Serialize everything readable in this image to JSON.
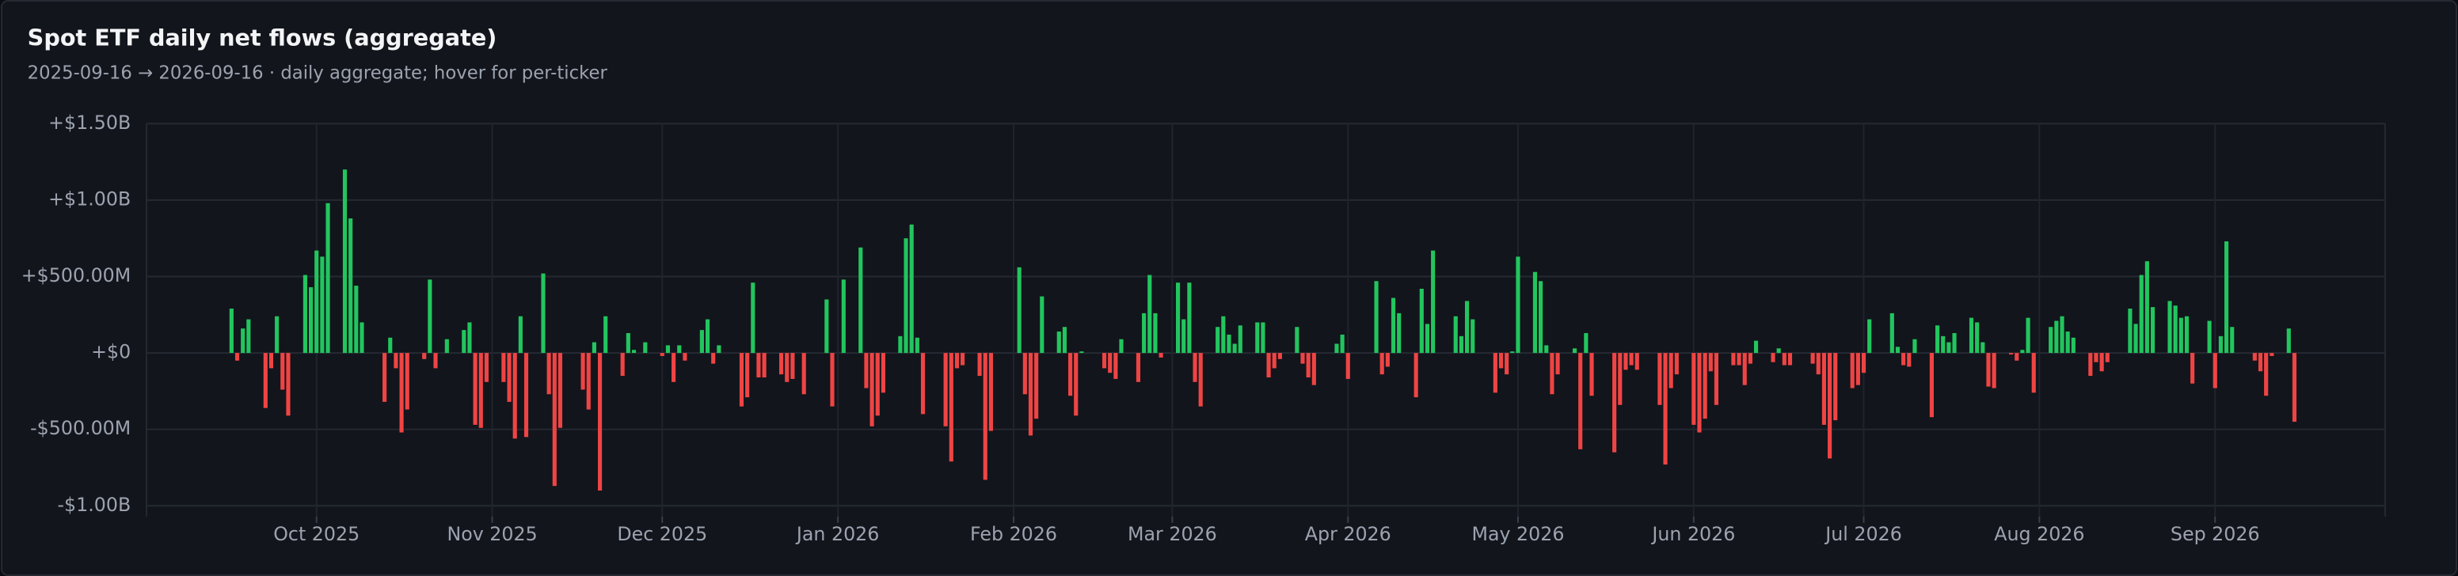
{
  "chart_data": {
    "type": "bar",
    "title": "Spot ETF daily net flows (aggregate)",
    "subtitle": "2025-09-16 → 2026-09-16 · daily aggregate; hover for per-ticker",
    "positive_color": "#22c55e",
    "negative_color": "#ef4444",
    "grid": true,
    "ylim": [
      -1070,
      1500
    ],
    "yticks": [
      {
        "value": -1000,
        "label": "-$1.00B"
      },
      {
        "value": -500,
        "label": "-$500.00M"
      },
      {
        "value": 0,
        "label": "+$0"
      },
      {
        "value": 500,
        "label": "+$500.00M"
      },
      {
        "value": 1000,
        "label": "+$1.00B"
      },
      {
        "value": 1500,
        "label": "+$1.50B"
      }
    ],
    "xlim": [
      "2025-09-01",
      "2026-10-01"
    ],
    "xticks": [
      {
        "value": "2025-10-01",
        "label": "Oct 2025"
      },
      {
        "value": "2025-11-01",
        "label": "Nov 2025"
      },
      {
        "value": "2025-12-01",
        "label": "Dec 2025"
      },
      {
        "value": "2026-01-01",
        "label": "Jan 2026"
      },
      {
        "value": "2026-02-01",
        "label": "Feb 2026"
      },
      {
        "value": "2026-03-01",
        "label": "Mar 2026"
      },
      {
        "value": "2026-04-01",
        "label": "Apr 2026"
      },
      {
        "value": "2026-05-01",
        "label": "May 2026"
      },
      {
        "value": "2026-06-01",
        "label": "Jun 2026"
      },
      {
        "value": "2026-07-01",
        "label": "Jul 2026"
      },
      {
        "value": "2026-08-01",
        "label": "Aug 2026"
      },
      {
        "value": "2026-09-01",
        "label": "Sep 2026"
      }
    ],
    "x": [
      "2025-09-16",
      "2025-09-17",
      "2025-09-18",
      "2025-09-19",
      "2025-09-22",
      "2025-09-23",
      "2025-09-24",
      "2025-09-25",
      "2025-09-26",
      "2025-09-29",
      "2025-09-30",
      "2025-10-01",
      "2025-10-02",
      "2025-10-03",
      "2025-10-06",
      "2025-10-07",
      "2025-10-08",
      "2025-10-09",
      "2025-10-13",
      "2025-10-14",
      "2025-10-15",
      "2025-10-16",
      "2025-10-17",
      "2025-10-20",
      "2025-10-21",
      "2025-10-22",
      "2025-10-24",
      "2025-10-27",
      "2025-10-28",
      "2025-10-29",
      "2025-10-30",
      "2025-10-31",
      "2025-11-03",
      "2025-11-04",
      "2025-11-05",
      "2025-11-06",
      "2025-11-07",
      "2025-11-10",
      "2025-11-11",
      "2025-11-12",
      "2025-11-13",
      "2025-11-17",
      "2025-11-18",
      "2025-11-19",
      "2025-11-20",
      "2025-11-21",
      "2025-11-24",
      "2025-11-25",
      "2025-11-26",
      "2025-11-28",
      "2025-12-01",
      "2025-12-02",
      "2025-12-03",
      "2025-12-04",
      "2025-12-05",
      "2025-12-08",
      "2025-12-09",
      "2025-12-10",
      "2025-12-11",
      "2025-12-15",
      "2025-12-16",
      "2025-12-17",
      "2025-12-18",
      "2025-12-19",
      "2025-12-22",
      "2025-12-23",
      "2025-12-24",
      "2025-12-26",
      "2025-12-30",
      "2025-12-31",
      "2026-01-02",
      "2026-01-05",
      "2026-01-06",
      "2026-01-07",
      "2026-01-08",
      "2026-01-09",
      "2026-01-12",
      "2026-01-13",
      "2026-01-14",
      "2026-01-15",
      "2026-01-16",
      "2026-01-20",
      "2026-01-21",
      "2026-01-22",
      "2026-01-23",
      "2026-01-26",
      "2026-01-27",
      "2026-01-28",
      "2026-02-02",
      "2026-02-03",
      "2026-02-04",
      "2026-02-05",
      "2026-02-06",
      "2026-02-09",
      "2026-02-10",
      "2026-02-11",
      "2026-02-12",
      "2026-02-13",
      "2026-02-17",
      "2026-02-18",
      "2026-02-19",
      "2026-02-20",
      "2026-02-23",
      "2026-02-24",
      "2026-02-25",
      "2026-02-26",
      "2026-02-27",
      "2026-03-02",
      "2026-03-03",
      "2026-03-04",
      "2026-03-05",
      "2026-03-06",
      "2026-03-09",
      "2026-03-10",
      "2026-03-11",
      "2026-03-12",
      "2026-03-13",
      "2026-03-16",
      "2026-03-17",
      "2026-03-18",
      "2026-03-19",
      "2026-03-20",
      "2026-03-23",
      "2026-03-24",
      "2026-03-25",
      "2026-03-26",
      "2026-03-30",
      "2026-03-31",
      "2026-04-01",
      "2026-04-06",
      "2026-04-07",
      "2026-04-08",
      "2026-04-09",
      "2026-04-10",
      "2026-04-13",
      "2026-04-14",
      "2026-04-15",
      "2026-04-16",
      "2026-04-20",
      "2026-04-21",
      "2026-04-22",
      "2026-04-23",
      "2026-04-27",
      "2026-04-28",
      "2026-04-29",
      "2026-04-30",
      "2026-05-01",
      "2026-05-04",
      "2026-05-05",
      "2026-05-06",
      "2026-05-07",
      "2026-05-08",
      "2026-05-11",
      "2026-05-12",
      "2026-05-13",
      "2026-05-14",
      "2026-05-18",
      "2026-05-19",
      "2026-05-20",
      "2026-05-21",
      "2026-05-22",
      "2026-05-26",
      "2026-05-27",
      "2026-05-28",
      "2026-05-29",
      "2026-06-01",
      "2026-06-02",
      "2026-06-03",
      "2026-06-04",
      "2026-06-05",
      "2026-06-08",
      "2026-06-09",
      "2026-06-10",
      "2026-06-11",
      "2026-06-12",
      "2026-06-15",
      "2026-06-16",
      "2026-06-17",
      "2026-06-18",
      "2026-06-22",
      "2026-06-23",
      "2026-06-24",
      "2026-06-25",
      "2026-06-26",
      "2026-06-29",
      "2026-06-30",
      "2026-07-01",
      "2026-07-02",
      "2026-07-06",
      "2026-07-07",
      "2026-07-08",
      "2026-07-09",
      "2026-07-10",
      "2026-07-13",
      "2026-07-14",
      "2026-07-15",
      "2026-07-16",
      "2026-07-17",
      "2026-07-20",
      "2026-07-21",
      "2026-07-22",
      "2026-07-23",
      "2026-07-24",
      "2026-07-27",
      "2026-07-28",
      "2026-07-29",
      "2026-07-30",
      "2026-07-31",
      "2026-08-03",
      "2026-08-04",
      "2026-08-05",
      "2026-08-06",
      "2026-08-07",
      "2026-08-10",
      "2026-08-11",
      "2026-08-12",
      "2026-08-13",
      "2026-08-17",
      "2026-08-18",
      "2026-08-19",
      "2026-08-20",
      "2026-08-21",
      "2026-08-24",
      "2026-08-25",
      "2026-08-26",
      "2026-08-27",
      "2026-08-28",
      "2026-08-31",
      "2026-09-01",
      "2026-09-02",
      "2026-09-03",
      "2026-09-04",
      "2026-09-08",
      "2026-09-09",
      "2026-09-10",
      "2026-09-11",
      "2026-09-14",
      "2026-09-15"
    ],
    "values": [
      290,
      -50,
      160,
      220,
      -360,
      -100,
      240,
      -240,
      -410,
      510,
      430,
      670,
      630,
      980,
      1200,
      880,
      440,
      200,
      -320,
      100,
      -100,
      -520,
      -370,
      -40,
      480,
      -100,
      90,
      150,
      200,
      -470,
      -490,
      -190,
      -190,
      -320,
      -560,
      240,
      -550,
      520,
      -270,
      -870,
      -490,
      -240,
      -370,
      70,
      -900,
      240,
      -150,
      130,
      20,
      70,
      -20,
      50,
      -190,
      50,
      -50,
      150,
      220,
      -70,
      50,
      -350,
      -290,
      460,
      -160,
      -160,
      -140,
      -190,
      -170,
      -270,
      350,
      -350,
      480,
      690,
      -230,
      -480,
      -410,
      -260,
      110,
      750,
      840,
      100,
      -400,
      -480,
      -710,
      -100,
      -80,
      -150,
      -830,
      -510,
      560,
      -270,
      -540,
      -430,
      370,
      140,
      170,
      -280,
      -410,
      10,
      -100,
      -130,
      -170,
      90,
      -190,
      260,
      510,
      260,
      -30,
      460,
      220,
      460,
      -190,
      -350,
      170,
      240,
      120,
      60,
      180,
      200,
      200,
      -160,
      -100,
      -40,
      170,
      -70,
      -160,
      -210,
      60,
      120,
      -170,
      470,
      -140,
      -90,
      360,
      260,
      -290,
      420,
      190,
      670,
      240,
      110,
      340,
      220,
      -260,
      -100,
      -140,
      10,
      630,
      530,
      470,
      50,
      -270,
      -140,
      30,
      -630,
      130,
      -280,
      -650,
      -340,
      -110,
      -80,
      -110,
      -340,
      -730,
      -230,
      -140,
      -470,
      -520,
      -430,
      -120,
      -340,
      -80,
      -80,
      -210,
      -70,
      80,
      -60,
      30,
      -80,
      -80,
      -70,
      -140,
      -470,
      -690,
      -440,
      -230,
      -210,
      -130,
      220,
      260,
      40,
      -80,
      -90,
      90,
      -420,
      180,
      110,
      70,
      130,
      230,
      200,
      70,
      -220,
      -230,
      -10,
      -50,
      20,
      230,
      -260,
      170,
      210,
      240,
      140,
      100,
      -150,
      -60,
      -120,
      -60,
      290,
      190,
      510,
      600,
      300,
      340,
      310,
      230,
      240,
      -200,
      210,
      -230,
      110,
      730,
      170,
      -50,
      -120,
      -280,
      -20,
      160,
      -450
    ]
  }
}
